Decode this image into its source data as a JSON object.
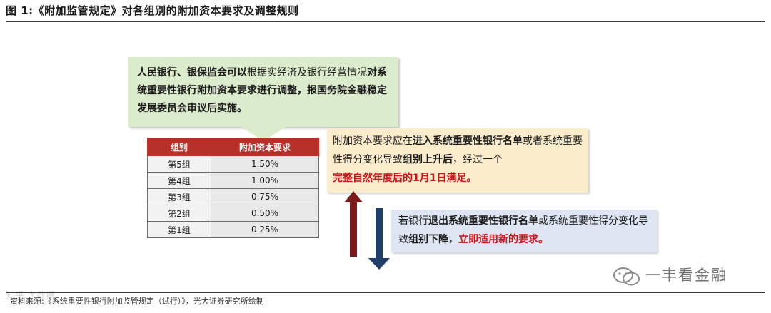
{
  "title": "图 1:《附加监管规定》对各组别的附加资本要求及调整规则",
  "green_box": {
    "bold_1": "人民银行、银保监会可以",
    "normal_1": "根据实经济及银行经营情况",
    "bold_2": "对系统重要性银行附加资本要求进行调整，报国务院金融稳定发展委员会审议后实施。"
  },
  "table": {
    "headers": [
      "组别",
      "附加资本要求"
    ],
    "rows": [
      {
        "group": "第5组",
        "value": "1.50%"
      },
      {
        "group": "第4组",
        "value": "1.00%"
      },
      {
        "group": "第3组",
        "value": "0.75%"
      },
      {
        "group": "第2组",
        "value": "0.50%"
      },
      {
        "group": "第1组",
        "value": "0.25%"
      }
    ]
  },
  "yellow_box": {
    "t1": "附加资本要求应在",
    "b1": "进入系统重要性银行名单",
    "t2": "或者系统重要性得分变化导致",
    "b2": "组别上升后",
    "t3": "，经过一个",
    "r1": "完整自然年度后的1月1日满足。"
  },
  "blue_box": {
    "t1": "若银行",
    "b1": "退出系统重要性银行名单",
    "t2": "或系统重要性得分变化导致",
    "b2": "组别下降",
    "t3": "，",
    "r1": "立即适用新的要求。"
  },
  "watermark": {
    "text": "一丰看金融",
    "corner": "知乎 大数据"
  },
  "source": "资料来源:《系统重要性银行附加监管规定（试行）》，光大证券研究所绘制",
  "colors": {
    "green_bg": "#dbeccd",
    "yellow_bg": "#fbeccc",
    "blue_bg": "#dde6f2",
    "table_header": "#b5312a",
    "highlight_red": "#c8161d",
    "arrow_up": "#7a1a1a",
    "arrow_down": "#1f3e6a"
  }
}
